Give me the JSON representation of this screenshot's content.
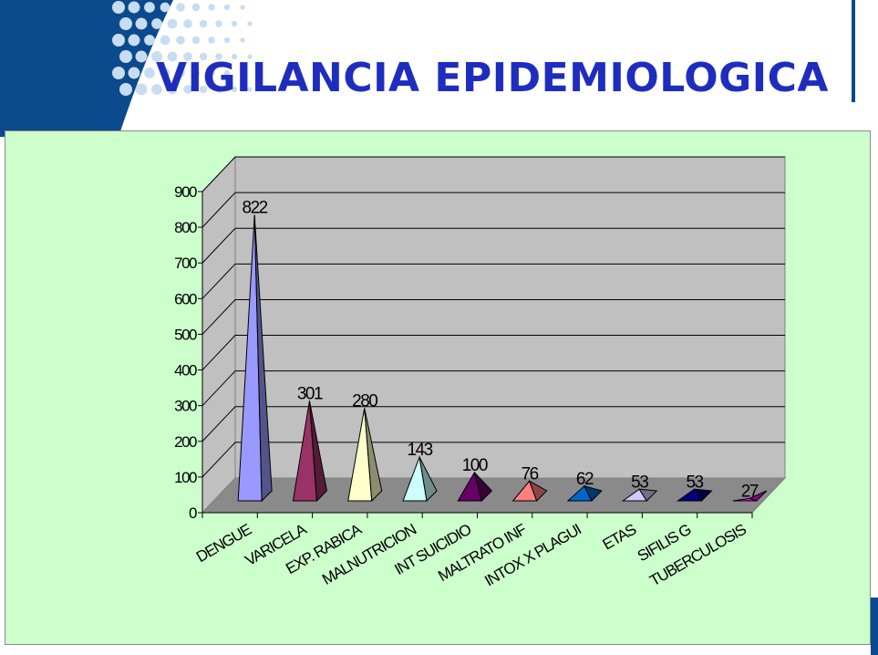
{
  "slide": {
    "title": "VIGILANCIA EPIDEMIOLOGICA",
    "colors": {
      "title": "#1f2dbf",
      "brand_blue": "#0b4a8c",
      "dot_blue": "#c8dcf2",
      "chart_background": "#ccffcc",
      "wall": "#c0c0c0"
    }
  },
  "chart_data": {
    "type": "bar",
    "bar_shape": "pyramid",
    "three_d": true,
    "title": "",
    "xlabel": "",
    "ylabel": "",
    "ylim": [
      0,
      900
    ],
    "yticks": [
      0,
      100,
      200,
      300,
      400,
      500,
      600,
      700,
      800,
      900
    ],
    "grid": true,
    "legend": "none",
    "categories": [
      "DENGUE",
      "VARICELA",
      "EXP. RABICA",
      "MALNUTRICION",
      "INT SUICIDIO",
      "MALTRATO INF",
      "INTOX X PLAGUI",
      "ETAS",
      "SIFILIS G",
      "TUBERCULOSIS"
    ],
    "category_labels_visible": [
      "DENGUE",
      "VARICELA",
      "EXP. RABICA",
      "MALNUTRICION",
      "INT SUICIDIO",
      "MALTRATO INF",
      "INTOX X PLAGUI",
      "ETAS",
      "SIFILIS G",
      "TUBERCULOSIS"
    ],
    "values": [
      822,
      301,
      280,
      143,
      100,
      76,
      62,
      53,
      53,
      27
    ],
    "data_labels": [
      "822",
      "301",
      "280",
      "143",
      "100",
      "76",
      "62",
      "53",
      "53",
      "27"
    ],
    "colors": [
      "#9999ff",
      "#993366",
      "#ffffcc",
      "#ccffff",
      "#660066",
      "#ff8080",
      "#0066cc",
      "#ccccff",
      "#000080",
      "#ff00ff"
    ]
  }
}
